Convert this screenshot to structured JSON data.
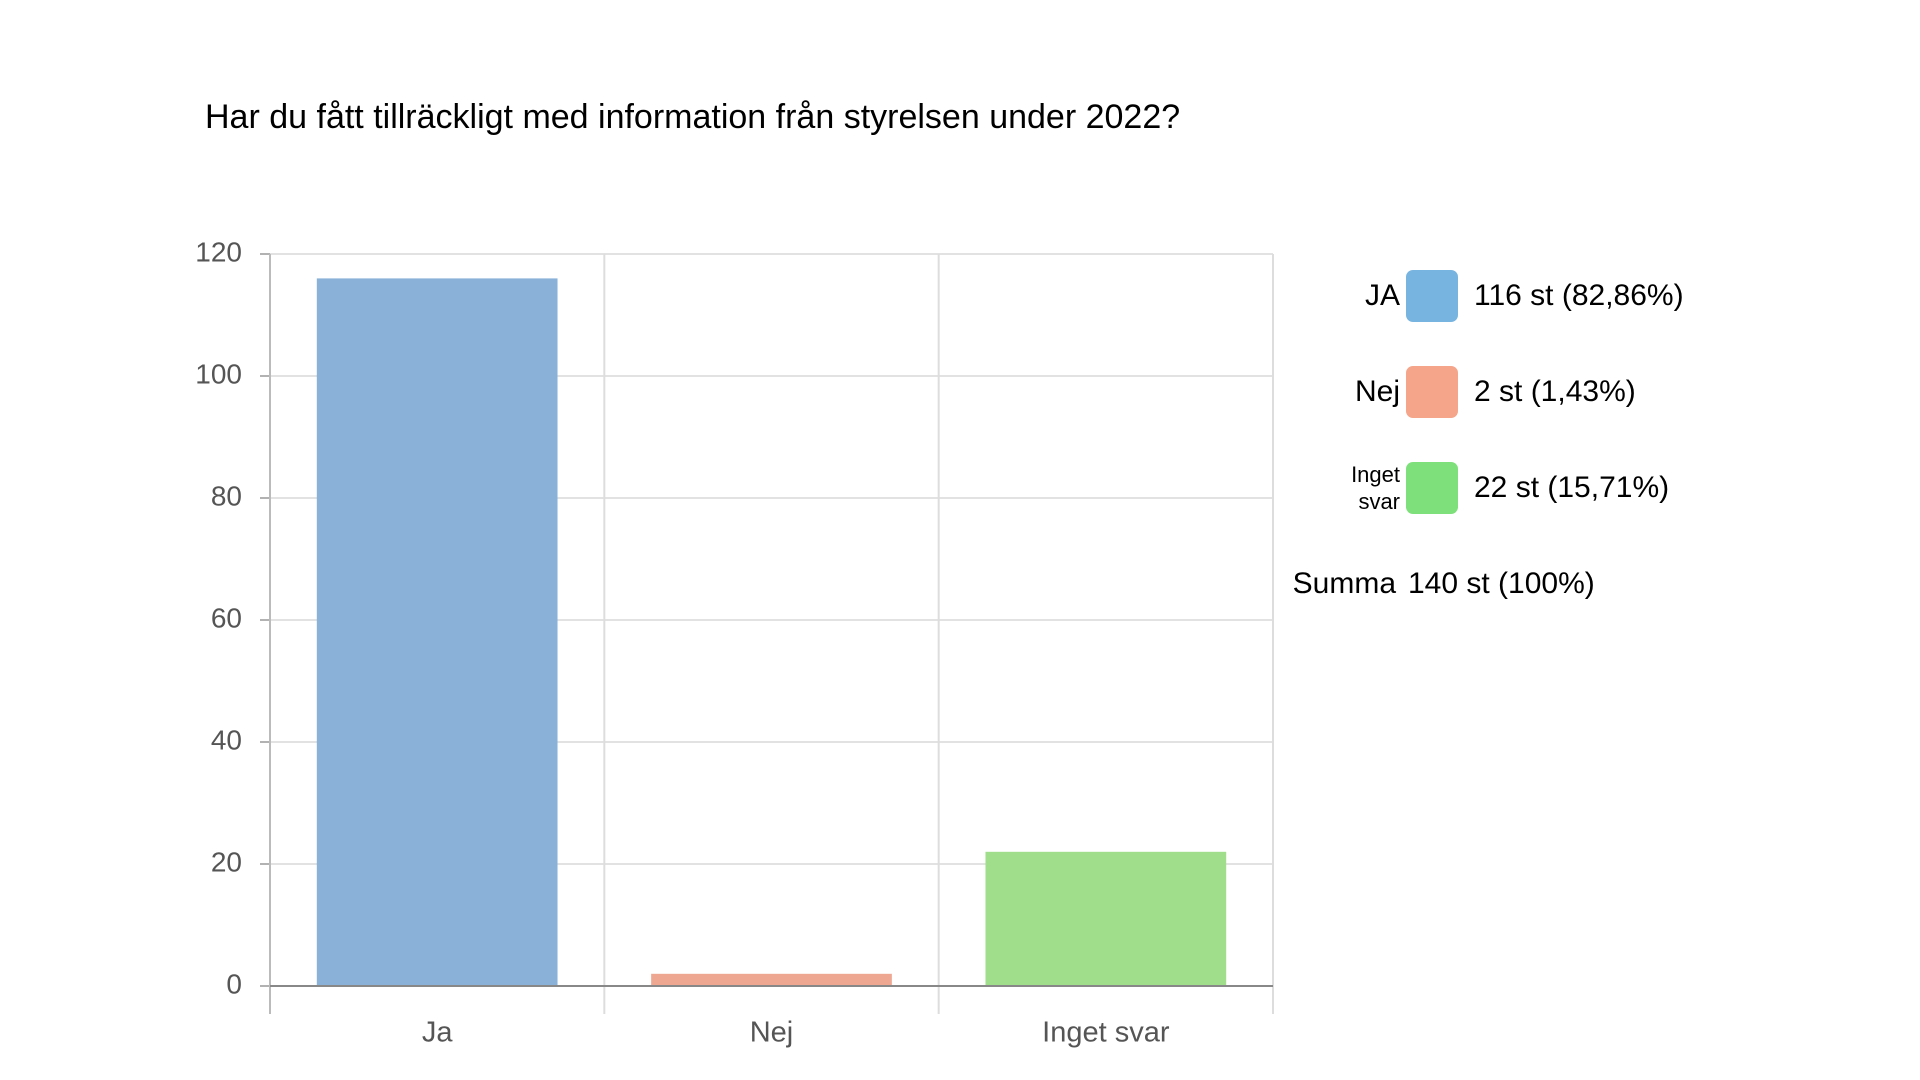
{
  "chart_data": {
    "type": "bar",
    "title": "Har du fått tillräckligt med information från styrelsen under 2022?",
    "categories": [
      "Ja",
      "Nej",
      "Inget svar"
    ],
    "values": [
      116,
      2,
      22
    ],
    "colors": [
      "#8ab2d9",
      "#eea892",
      "#a0de8b"
    ],
    "ylim": [
      0,
      120
    ],
    "yticks": [
      0,
      20,
      40,
      60,
      80,
      100,
      120
    ],
    "grid": true,
    "legend": [
      {
        "name": "JA",
        "label": "116 st (82,86%)",
        "color": "#78b4e0"
      },
      {
        "name": "Nej",
        "label": "2 st (1,43%)",
        "color": "#f4a58a"
      },
      {
        "name": "Inget svar",
        "label": "22 st (15,71%)",
        "color": "#7de07a"
      }
    ],
    "total": {
      "name": "Summa",
      "label": "140 st (100%)"
    }
  }
}
